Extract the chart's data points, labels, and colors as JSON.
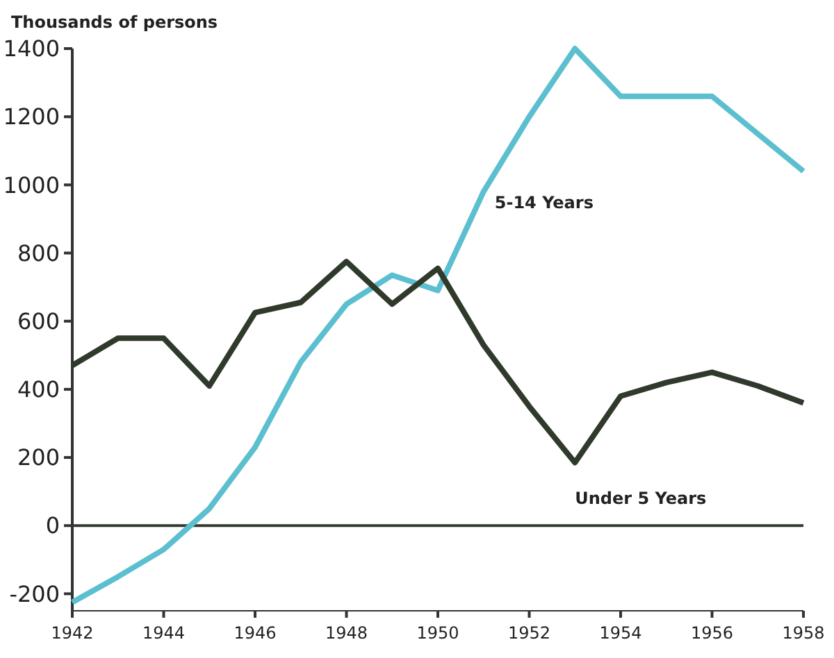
{
  "chart_data": {
    "type": "line",
    "ylabel": "Thousands of persons",
    "x": [
      1942,
      1943,
      1944,
      1945,
      1946,
      1947,
      1948,
      1949,
      1950,
      1951,
      1952,
      1953,
      1954,
      1955,
      1956,
      1957,
      1958
    ],
    "series": [
      {
        "name": "5-14 Years",
        "color": "#5bbfcf",
        "values": [
          -225,
          -150,
          -70,
          50,
          230,
          480,
          650,
          735,
          690,
          980,
          1200,
          1400,
          1260,
          1260,
          1260,
          1150,
          1040
        ]
      },
      {
        "name": "Under 5 Years",
        "color": "#2f3a2c",
        "values": [
          470,
          550,
          550,
          410,
          625,
          655,
          775,
          650,
          755,
          530,
          350,
          185,
          380,
          420,
          450,
          410,
          360
        ]
      }
    ],
    "xlim": [
      1942,
      1958
    ],
    "xticks": [
      1942,
      1944,
      1946,
      1948,
      1950,
      1952,
      1954,
      1956,
      1958
    ],
    "ylim": [
      -250,
      1400
    ],
    "yticks": [
      -200,
      0,
      200,
      400,
      600,
      800,
      1000,
      1200,
      1400
    ],
    "ref_lines": [
      {
        "axis": "y",
        "value": 0,
        "color": "#2f3a2c"
      }
    ],
    "grid": false,
    "marker": "none",
    "line_style": "solid"
  }
}
